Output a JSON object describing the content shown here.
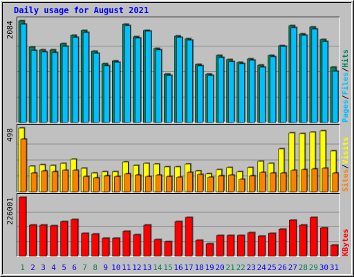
{
  "chart_data": {
    "type": "bar",
    "title": "Daily usage for August 2021",
    "categories": [
      "1",
      "2",
      "3",
      "4",
      "5",
      "6",
      "7",
      "8",
      "9",
      "10",
      "11",
      "12",
      "13",
      "14",
      "15",
      "16",
      "17",
      "18",
      "19",
      "20",
      "21",
      "22",
      "23",
      "24",
      "25",
      "26",
      "27",
      "28",
      "29",
      "30",
      "31"
    ],
    "weekend_days": [
      "1",
      "7",
      "8",
      "14",
      "15",
      "21",
      "22",
      "28",
      "29"
    ],
    "panels": [
      {
        "id": "hits",
        "ymax": 2084,
        "ymax_label": "2084",
        "series": [
          {
            "name": "Hits",
            "color": "#00805c",
            "values": [
              2084,
              1550,
              1490,
              1490,
              1610,
              1790,
              1890,
              1460,
              1200,
              1260,
              2010,
              1760,
              1890,
              1520,
              990,
              1770,
              1710,
              1190,
              990,
              1370,
              1290,
              1230,
              1310,
              1180,
              1380,
              1580,
              1990,
              1820,
              1960,
              1700,
              1130
            ]
          },
          {
            "name": "Files",
            "color": "#00c0ff",
            "values": [
              2010,
              1480,
              1440,
              1430,
              1560,
              1740,
              1850,
              1420,
              1160,
              1240,
              1990,
              1730,
              1870,
              1490,
              960,
              1740,
              1680,
              1160,
              970,
              1330,
              1250,
              1210,
              1280,
              1140,
              1350,
              1560,
              1940,
              1790,
              1920,
              1660,
              1050
            ]
          },
          {
            "name": "Pages",
            "color": "#00e0ff",
            "values": [
              0
            ]
          }
        ],
        "label_parts": [
          "Pages",
          "/",
          "Files",
          "/",
          "Hits"
        ]
      },
      {
        "id": "visits",
        "ymax": 498,
        "ymax_label": "498",
        "series": [
          {
            "name": "Visits",
            "color": "#ffff00",
            "values": [
              498,
              198,
              212,
              205,
              222,
              257,
              182,
              145,
              155,
              158,
              232,
              204,
              222,
              214,
              194,
              197,
              218,
              164,
              142,
              172,
              192,
              156,
              188,
              237,
              220,
              336,
              460,
              457,
              464,
              478,
              320
            ]
          },
          {
            "name": "Sites",
            "color": "#ff8000",
            "values": [
              410,
              148,
              160,
              156,
              170,
              168,
              120,
              110,
              125,
              118,
              143,
              130,
              120,
              128,
              118,
              116,
              150,
              138,
              112,
              125,
              132,
              100,
              124,
              150,
              145,
              148,
              169,
              175,
              178,
              182,
              148
            ]
          }
        ],
        "label_parts": [
          "Sites",
          "/",
          "Visits"
        ]
      },
      {
        "id": "kbytes",
        "ymax": 226001,
        "ymax_label": "226001",
        "series": [
          {
            "name": "KBytes",
            "color": "#ff0000",
            "values": [
              226001,
              120000,
              120000,
              117000,
              133000,
              140000,
              89000,
              86000,
              69000,
              69000,
              97000,
              83000,
              120000,
              63000,
              57000,
              133000,
              150000,
              61000,
              47000,
              80000,
              80000,
              79000,
              90000,
              78000,
              89000,
              103000,
              137000,
              120000,
              148000,
              109000,
              43000
            ]
          }
        ],
        "label_parts": [
          "KBytes"
        ]
      }
    ],
    "grid": true
  },
  "colors": {
    "background": "#c0c0c0",
    "title": "#0000ff",
    "axis_text": "#000000",
    "weekday_label": "#0000ff",
    "weekend_label": "#00805c",
    "hits": "#00805c",
    "files": "#00c0ff",
    "visits": "#ffff00",
    "sites": "#ff8000",
    "kbytes": "#ff0000"
  }
}
